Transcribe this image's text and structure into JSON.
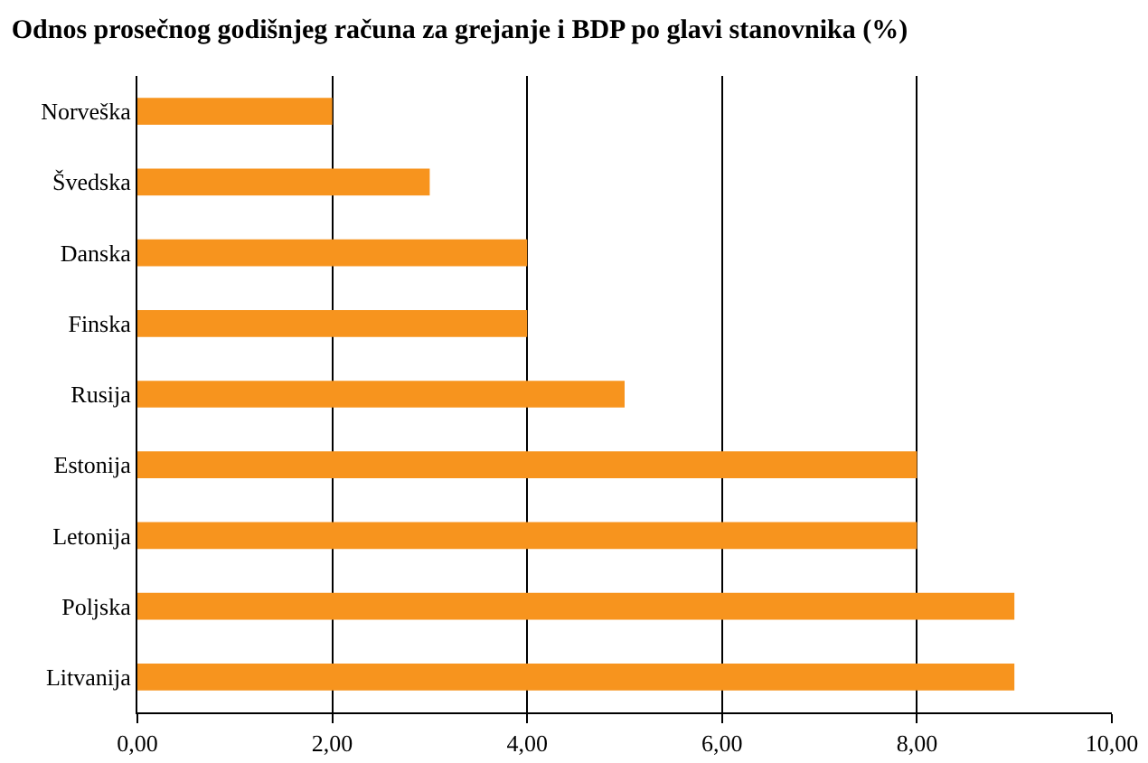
{
  "chart_data": {
    "type": "bar",
    "orientation": "horizontal",
    "title": "Odnos prosečnog godišnjeg računa za grejanje i BDP po glavi stanovnika (%)",
    "categories": [
      "Norveška",
      "Švedska",
      "Danska",
      "Finska",
      "Rusija",
      "Estonija",
      "Letonija",
      "Poljska",
      "Litvanija"
    ],
    "values": [
      2,
      3,
      4,
      4,
      5,
      8,
      8,
      9,
      9
    ],
    "color": "#f7941e",
    "xlim": [
      0,
      10
    ],
    "xticks": [
      {
        "value": 0,
        "label": "0,00"
      },
      {
        "value": 2,
        "label": "2,00"
      },
      {
        "value": 4,
        "label": "4,00"
      },
      {
        "value": 6,
        "label": "6,00"
      },
      {
        "value": 8,
        "label": "8,00"
      },
      {
        "value": 10,
        "label": "10,00"
      }
    ],
    "grid": "x"
  }
}
